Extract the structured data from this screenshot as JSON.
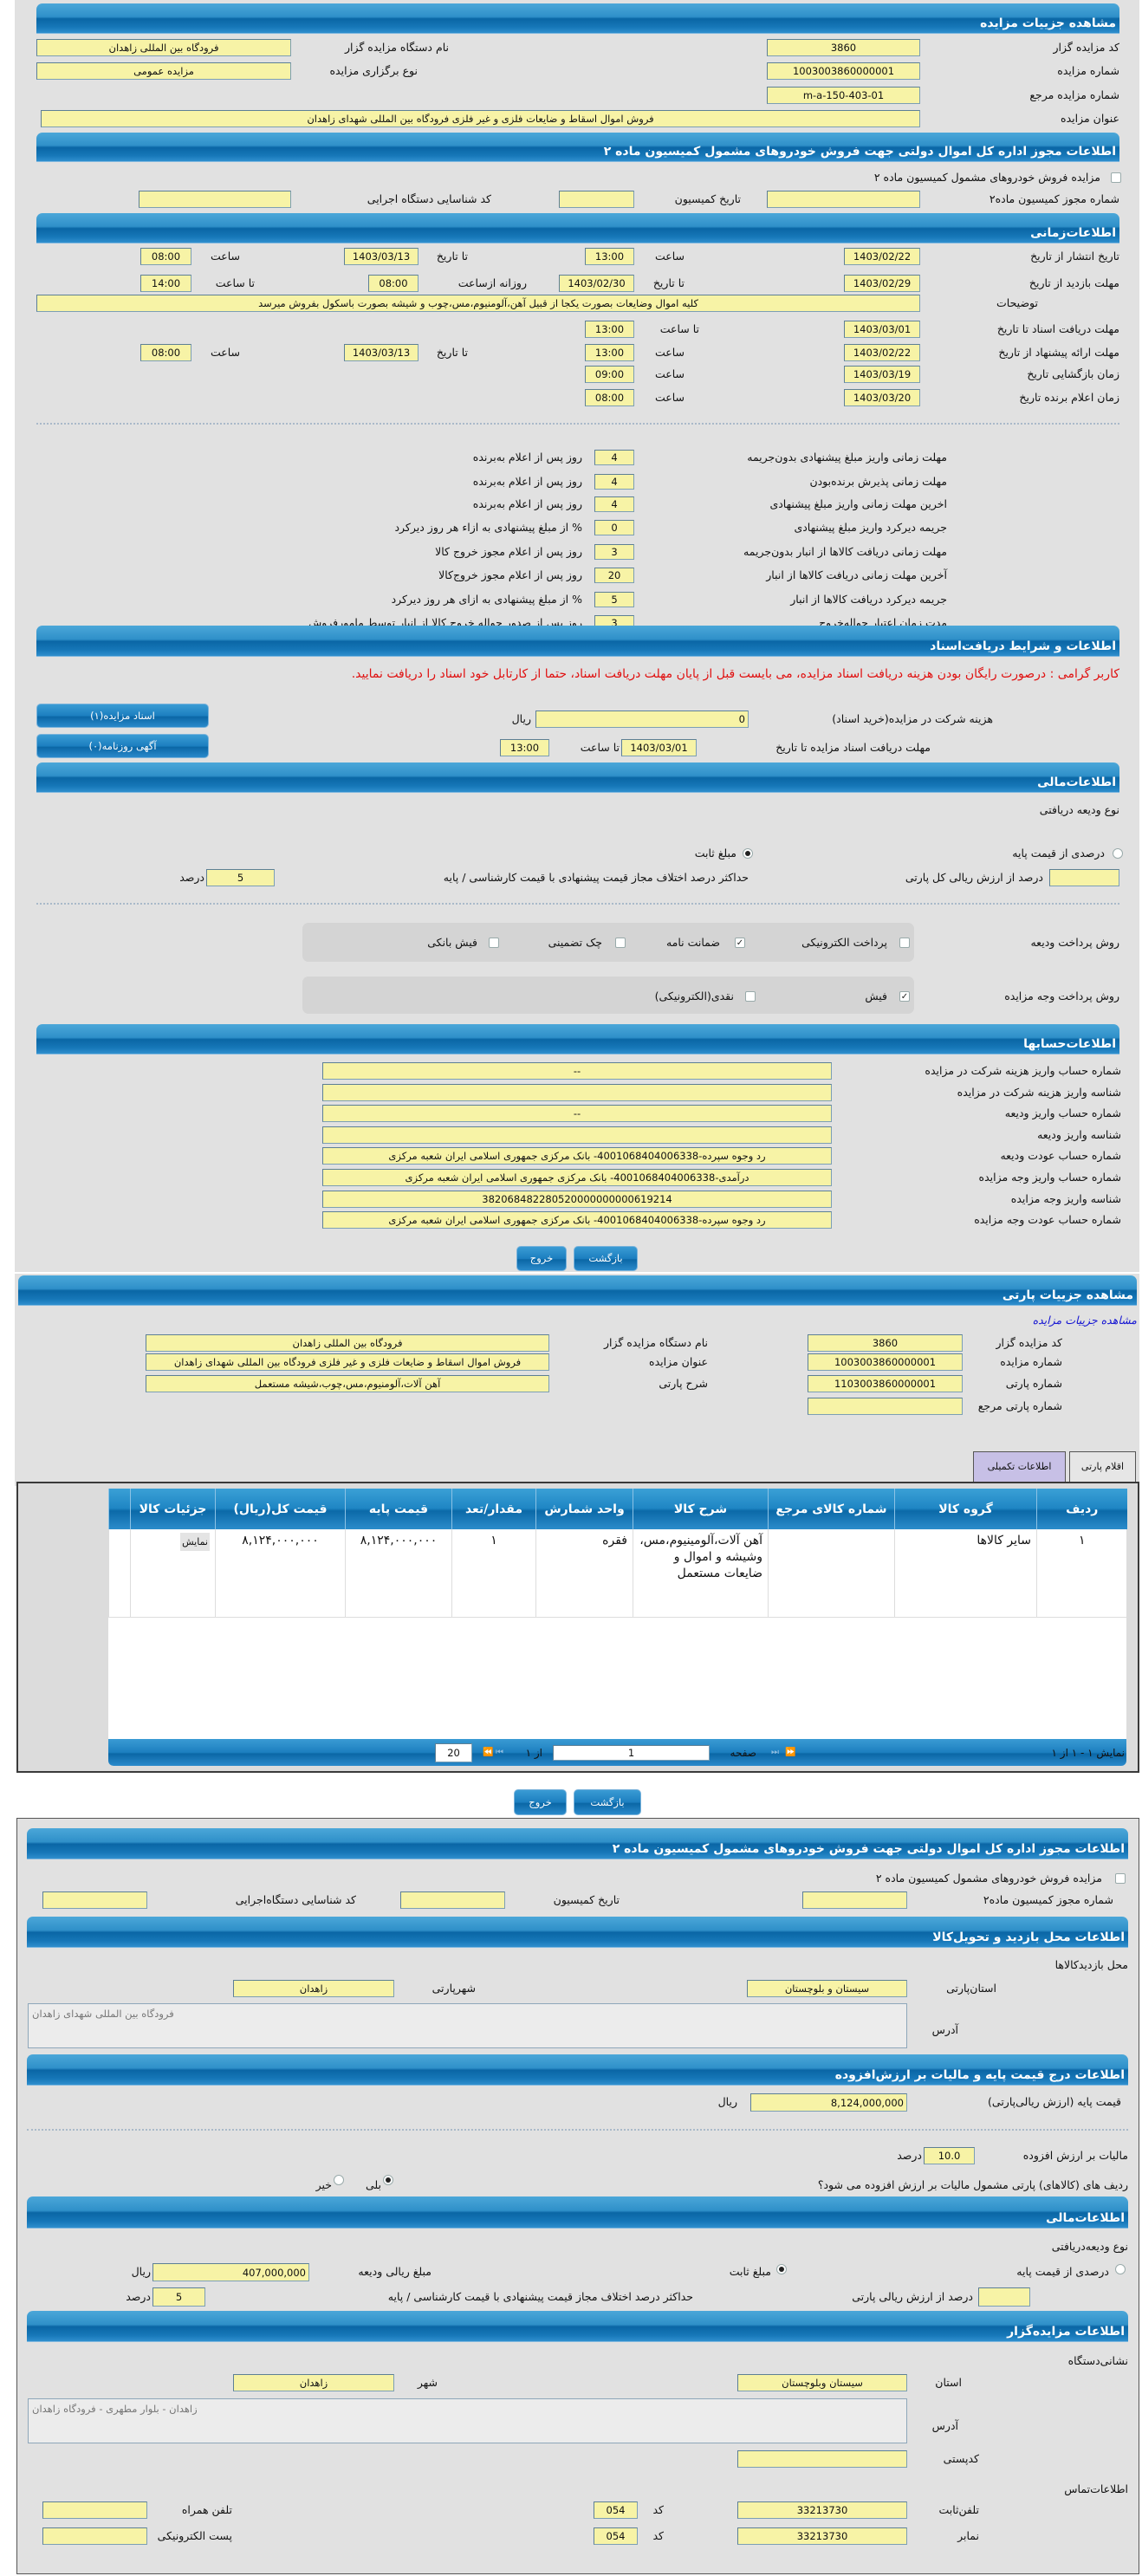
{
  "auction_details": {
    "title": "مشاهده جزییات مزایده",
    "organizer_code_label": "کد مزایده گزار",
    "organizer_code": "3860",
    "organizer_name_label": "نام دستگاه مزایده گزار",
    "organizer_name": "فرودگاه بین المللی زاهدان",
    "auction_number_label": "شماره مزایده",
    "auction_number": "1003003860000001",
    "holding_type_label": "نوع برگزاری مزایده",
    "holding_type": "مزایده عمومی",
    "ref_number_label": "شماره مزایده مرجع",
    "ref_number": "m-a-150-403-01",
    "subject_label": "عنوان مزایده",
    "subject": "فروش اموال اسقاط و ضایعات فلزی و غیر فلزی فرودگاه بین المللی شهدای زاهدان"
  },
  "permit": {
    "title": "اطلاعات مجوز اداره کل اموال دولتی جهت فروش خودروهای مشمول کمیسیون ماده ۲",
    "checkbox_label": "مزایده فروش خودروهای مشمول کمیسیون ماده ۲",
    "checked": false,
    "permit_no_label": "شماره مجوز کمیسیون ماده۲",
    "permit_no": "",
    "date_label": "تاریخ کمیسیون",
    "date": "",
    "exec_code_label": "کد شناسایی دستگاه اجرایی",
    "exec_code": ""
  },
  "timing": {
    "title": "اطلاعات‌زمانی",
    "publish": {
      "label": "تاریخ انتشار از تاریخ",
      "from_date": "1403/02/22",
      "time_label": "ساعت",
      "from_time": "13:00",
      "to_label": "تا تاریخ",
      "to_date": "1403/03/13",
      "to_time_label": "ساعت",
      "to_time": "08:00"
    },
    "visit": {
      "label": "مهلت بازدید از تاریخ",
      "from_date": "1403/02/29",
      "to_label": "تا تاریخ",
      "to_date": "1403/02/30",
      "daily_label": "روزانه ازساعت",
      "daily_from": "08:00",
      "to_time_label": "تا ساعت",
      "to_time": "14:00"
    },
    "description_label": "توضیحات",
    "description": "کلیه اموال وضایعات بصورت یکجا از قبیل آهن،آلومنیوم،مس،چوب و شیشه بصورت باسکول بفروش میرسد",
    "doc_deadline": {
      "label": "مهلت دریافت اسناد تا تاریخ",
      "date": "1403/03/01",
      "time_label": "تا ساعت",
      "time": "13:00"
    },
    "offer": {
      "label": "مهلت ارائه پیشنهاد از تاریخ",
      "from_date": "1403/02/22",
      "time_label": "ساعت",
      "from_time": "13:00",
      "to_label": "تا تاریخ",
      "to_date": "1403/03/13",
      "to_time_label": "ساعت",
      "to_time": "08:00"
    },
    "opening": {
      "label": "زمان بازگشایی    تاریخ",
      "date": "1403/03/19",
      "time_label": "ساعت",
      "time": "09:00"
    },
    "winner": {
      "label": "زمان اعلام برنده    تاریخ",
      "date": "1403/03/20",
      "time_label": "ساعت",
      "time": "08:00"
    },
    "deadlines": [
      {
        "label": "مهلت زمانی واریز مبلغ پیشنهادی بدون‌جریمه",
        "value": "4",
        "suffix": "روز پس از اعلام به‌برنده"
      },
      {
        "label": "مهلت زمانی پذیرش برنده‌بودن",
        "value": "4",
        "suffix": "روز پس از اعلام به‌برنده"
      },
      {
        "label": "اخرین مهلت زمانی واریز مبلغ پیشنهادی",
        "value": "4",
        "suffix": "روز پس از اعلام به‌برنده"
      },
      {
        "label": "جریمه دیرکرد واریز مبلغ پیشنهادی",
        "value": "0",
        "suffix": "% از مبلغ پیشنهادی به ازاء هر روز دیرکرد"
      },
      {
        "label": "مهلت زمانی دریافت کالاها از انبار بدون‌جریمه",
        "value": "3",
        "suffix": "روز پس از اعلام مجوز خروج کالا"
      },
      {
        "label": "آخرین مهلت زمانی دریافت کالاها از انبار",
        "value": "20",
        "suffix": "روز پس از اعلام مجوز خروج‌کالا"
      },
      {
        "label": "جریمه دیرکرد دریافت کالاها از انبار",
        "value": "5",
        "suffix": "% از مبلغ پیشنهادی به ازای هر روز دیرکرد"
      },
      {
        "label": "مدت زمان اعتبار حواله‌خروج",
        "value": "3",
        "suffix": "روز پس از صدور حواله خروج کالا از انبار توسط مامورفروش"
      }
    ]
  },
  "documents": {
    "title": "اطلاعات و شرایط دریافت‌اسناد",
    "notice": "کاربر گرامی : درصورت رایگان بودن هزینه دریافت اسناد مزایده، می بایست قبل از پایان مهلت دریافت اسناد، حتما از کارتابل خود اسناد را دریافت نمایید.",
    "fee_label": "هزینه شرکت در مزایده(خرید اسناد)",
    "fee": "0",
    "currency": "ریال",
    "deadline_label": "مهلت دریافت اسناد مزایده تا تاریخ",
    "deadline_date": "1403/03/01",
    "time_label": "تا ساعت",
    "time": "13:00",
    "docs_button": "اسناد مزایده(۱)",
    "ad_button": "آگهی روزنامه(۰)"
  },
  "financial": {
    "title": "اطلاعات‌مالی",
    "deposit_type_label": "نوع ودیعه دریافتی",
    "options": [
      {
        "label": "درصدی از قیمت پایه",
        "selected": false
      },
      {
        "label": "مبلغ ثابت",
        "selected": true
      }
    ],
    "percent_label": "درصد از ارزش ریالی کل پارتی",
    "percent": "",
    "max_diff_label": "حداکثر درصد اختلاف مجاز قیمت پیشنهادی با قیمت کارشناسی / پایه",
    "max_diff": "5",
    "percent_unit": "درصد",
    "deposit_method_label": "روش پرداخت ودیعه",
    "deposit_methods": [
      {
        "label": "پرداخت الکترونیکی",
        "checked": false
      },
      {
        "label": "ضمانت نامه",
        "checked": true
      },
      {
        "label": "چک تضمینی",
        "checked": false
      },
      {
        "label": "فیش بانکی",
        "checked": false
      }
    ],
    "payment_method_label": "روش پرداخت وجه مزایده",
    "payment_methods": [
      {
        "label": "فیش",
        "checked": true
      },
      {
        "label": "نقدی(الکترونیکی)",
        "checked": false
      }
    ]
  },
  "accounts": {
    "title": "اطلاعات‌حسابها",
    "rows": [
      {
        "label": "شماره حساب واریز هزینه شرکت در مزایده",
        "value": "--"
      },
      {
        "label": "شناسه واریز هزینه شرکت در مزایده",
        "value": ""
      },
      {
        "label": "شماره حساب واریز ودیعه",
        "value": "--"
      },
      {
        "label": "شناسه واریز ودیعه",
        "value": ""
      },
      {
        "label": "شماره حساب عودت ودیعه",
        "value": "رد وجوه سپرده-4001068404006338- بانک مرکزی جمهوری اسلامی ایران شعبه مرکزی"
      },
      {
        "label": "شماره حساب واریز وجه مزایده",
        "value": "درآمدی-4001068404006338- بانک مرکزی جمهوری اسلامی ایران شعبه مرکزی"
      },
      {
        "label": "شناسه واریز وجه مزایده",
        "value": "382068482280520000000000619214"
      },
      {
        "label": "شماره حساب عودت وجه مزایده",
        "value": "رد وجوه سپرده-4001068404006338- بانک مرکزی جمهوری اسلامی ایران شعبه مرکزی"
      }
    ],
    "back_button": "بازگشت",
    "exit_button": "خروج"
  },
  "party": {
    "title": "مشاهده جزییات پارتی",
    "link": "مشاهده جزییات مزایده",
    "organizer_code_label": "کد مزایده گزار",
    "organizer_code": "3860",
    "organizer_name_label": "نام دستگاه مزایده گزار",
    "organizer_name": "فرودگاه بین المللی زاهدان",
    "auction_number_label": "شماره مزایده",
    "auction_number": "1003003860000001",
    "subject_label": "عنوان مزایده",
    "subject": "فروش اموال اسقاط و ضایعات فلزی و غیر فلزی فرودگاه بین المللی شهدای زاهدان",
    "party_number_label": "شماره پارتی",
    "party_number": "1103003860000001",
    "desc_label": "شرح پارتی",
    "desc": "آهن آلات،آلومنیوم،مس،چوب،شیشه مستعمل",
    "ref_label": "شماره پارتی مرجع",
    "ref": "",
    "tabs": [
      {
        "label": "اقلام پارتی",
        "active": true
      },
      {
        "label": "اطلاعات تکمیلی",
        "active": false
      }
    ],
    "table": {
      "columns": [
        "ردیف",
        "گروه کالا",
        "شماره کالای مرجع",
        "شرح کالا",
        "واحد شمارش",
        "مقدار/تعد",
        "قیمت پایه",
        "قیمت کل(ریال)",
        "جزئیات کالا",
        ""
      ],
      "rows": [
        {
          "cells": [
            "۱",
            "سایر کالاها",
            "",
            "آهن آلات،آلومینیوم،مس، وشیشه و اموال و ضایعات مستعمل",
            "فقره",
            "۱",
            "۸,۱۲۴,۰۰۰,۰۰۰",
            "۸,۱۲۴,۰۰۰,۰۰۰"
          ],
          "detail_button": "نمایش"
        }
      ]
    },
    "pager": {
      "summary": "نمایش ۱ - ۱ از ۱",
      "page_label": "صفحه",
      "page": "1",
      "of_label": "از ۱",
      "page_size": "20"
    },
    "back_button": "بازگشت",
    "exit_button": "خروج"
  },
  "permit2": {
    "title": "اطلاعات مجوز اداره کل اموال دولتی جهت فروش خودروهای مشمول کمیسیون ماده ۲",
    "checkbox_label": "مزایده فروش خودروهای مشمول کمیسیون ماده ۲",
    "checked": false,
    "permit_no_label": "شماره مجوز کمیسیون ماده۲",
    "permit_no": "",
    "date_label": "تاریخ کمیسیون",
    "date": "",
    "exec_code_label": "کد شناسایی دستگاه‌اجرایی",
    "exec_code": ""
  },
  "visit_location": {
    "title": "اطلاعات محل بازدید و تحویل‌کالا",
    "sublabel": "محل بازدیدکالاها",
    "province_label": "استان‌پارتی",
    "province": "سیستان و بلوچستان",
    "city_label": "شهرپارتی",
    "city": "زاهدان",
    "address_label": "آدرس",
    "address": "فرودگاه بین المللی شهدای زاهدان"
  },
  "pricing": {
    "title": "اطلاعات درج قیمت پایه و مالیات بر ارزش‌افزوده",
    "base_label": "قیمت پایه (ارزش ریالی‌پارتی)",
    "base": "8,124,000,000",
    "currency": "ریال",
    "vat_label": "مالیات بر ارزش افزوده",
    "vat": "10.0",
    "vat_unit": "درصد",
    "vat_question": "ردیف های (کالاهای) پارتی مشمول مالیات بر ارزش افزوده می شود؟",
    "yes": {
      "label": "بلی",
      "selected": true
    },
    "no": {
      "label": "خیر",
      "selected": false
    }
  },
  "financial2": {
    "title": "اطلاعات‌مالی",
    "deposit_type_label": "نوع ودیعه‌دریافتی",
    "options": [
      {
        "label": "درصدی از قیمت پایه",
        "selected": false
      },
      {
        "label": "مبلغ ثابت",
        "selected": true
      }
    ],
    "amount_label": "مبلغ ریالی ودیعه",
    "amount": "407,000,000",
    "currency": "ریال",
    "percent_label": "درصد از ارزش ریالی پارتی",
    "percent": "",
    "max_diff_label": "حداکثر درصد اختلاف مجاز قیمت پیشنهادی با قیمت کارشناسی / پایه",
    "max_diff": "5",
    "percent_unit": "درصد"
  },
  "organizer": {
    "title": "اطلاعات مزایده‌گزار",
    "address_heading": "نشانی‌دستگاه",
    "province_label": "استان",
    "province": "سیستان وبلوچستان",
    "city_label": "شهر",
    "city": "زاهدان",
    "address_label": "آدرس",
    "address": "زاهدان - بلوار مطهری - فرودگاه زاهدان",
    "postal_label": "کدپستی",
    "postal": "",
    "contact_heading": "اطلاعات‌تماس",
    "phone_label": "تلفن‌ثابت",
    "phone": "33213730",
    "code_label": "کد",
    "phone_code": "054",
    "mobile_label": "تلفن همراه",
    "mobile": "",
    "fax_label": "نمابر",
    "fax": "33213730",
    "fax_code": "054",
    "email_label": "پست الکترونیکی",
    "email": ""
  },
  "colors": {
    "header_blue": "#0a66a5",
    "field_yellow": "#f7f3a6",
    "panel_gray": "#e1e1e1",
    "notice_red": "#e01010",
    "link_blue": "#1414d2"
  }
}
